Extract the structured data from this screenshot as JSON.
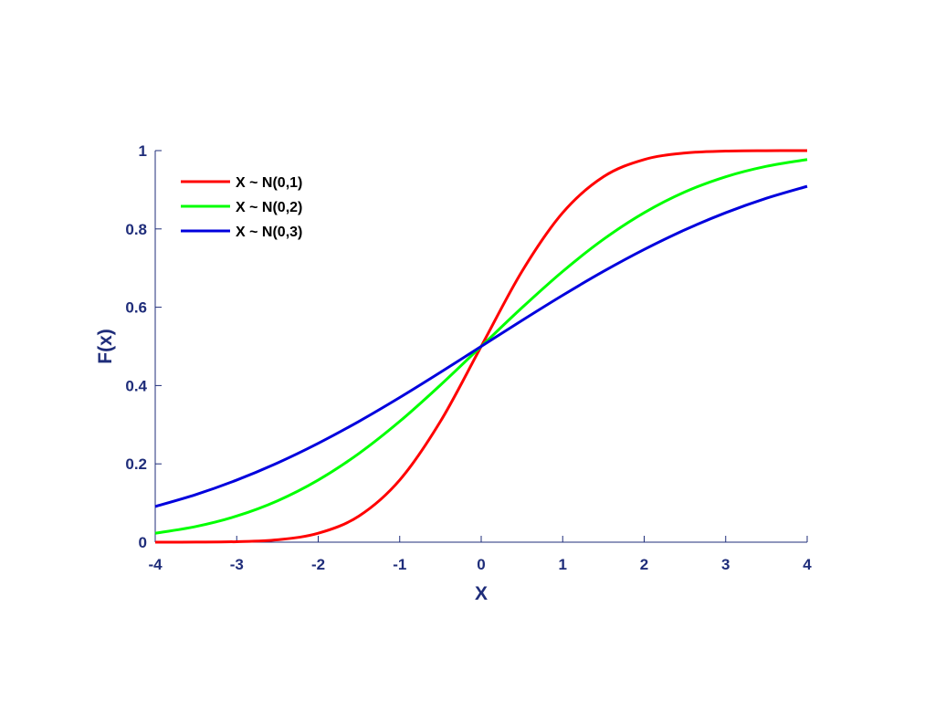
{
  "chart_data": {
    "type": "line",
    "title": "",
    "xlabel": "X",
    "ylabel": "F(x)",
    "xlim": [
      -4,
      4
    ],
    "ylim": [
      0,
      1
    ],
    "xticks": [
      -4,
      -3,
      -2,
      -1,
      0,
      1,
      2,
      3,
      4
    ],
    "yticks": [
      0,
      0.2,
      0.4,
      0.6,
      0.8,
      1
    ],
    "xtick_labels": [
      "-4",
      "-3",
      "-2",
      "-1",
      "0",
      "1",
      "2",
      "3",
      "4"
    ],
    "ytick_labels": [
      "0",
      "0.2",
      "0.4",
      "0.6",
      "0.8",
      "1"
    ],
    "grid": false,
    "legend_position": "top-left",
    "axis_color": "#1f2d7a",
    "x": [
      -4,
      -3.5,
      -3,
      -2.5,
      -2,
      -1.5,
      -1,
      -0.5,
      0,
      0.5,
      1,
      1.5,
      2,
      2.5,
      3,
      3.5,
      4
    ],
    "series": [
      {
        "name": "X ~ N(0,1)",
        "color": "#ff0000",
        "values": [
          3e-05,
          0.0002,
          0.0013,
          0.0062,
          0.0228,
          0.0668,
          0.1587,
          0.3085,
          0.5,
          0.6915,
          0.8413,
          0.9332,
          0.9772,
          0.9938,
          0.9987,
          0.9998,
          1.0
        ]
      },
      {
        "name": "X ~ N(0,2)",
        "color": "#00ff00",
        "values": [
          0.0228,
          0.0401,
          0.0668,
          0.1056,
          0.1587,
          0.2266,
          0.3085,
          0.4013,
          0.5,
          0.5987,
          0.6915,
          0.7734,
          0.8413,
          0.8944,
          0.9332,
          0.9599,
          0.9772
        ]
      },
      {
        "name": "X ~ N(0,3)",
        "color": "#0000dd",
        "values": [
          0.0912,
          0.1217,
          0.1587,
          0.2023,
          0.2525,
          0.3085,
          0.3694,
          0.4338,
          0.5,
          0.5662,
          0.6306,
          0.6915,
          0.7475,
          0.7977,
          0.8413,
          0.8783,
          0.9088
        ]
      }
    ]
  }
}
